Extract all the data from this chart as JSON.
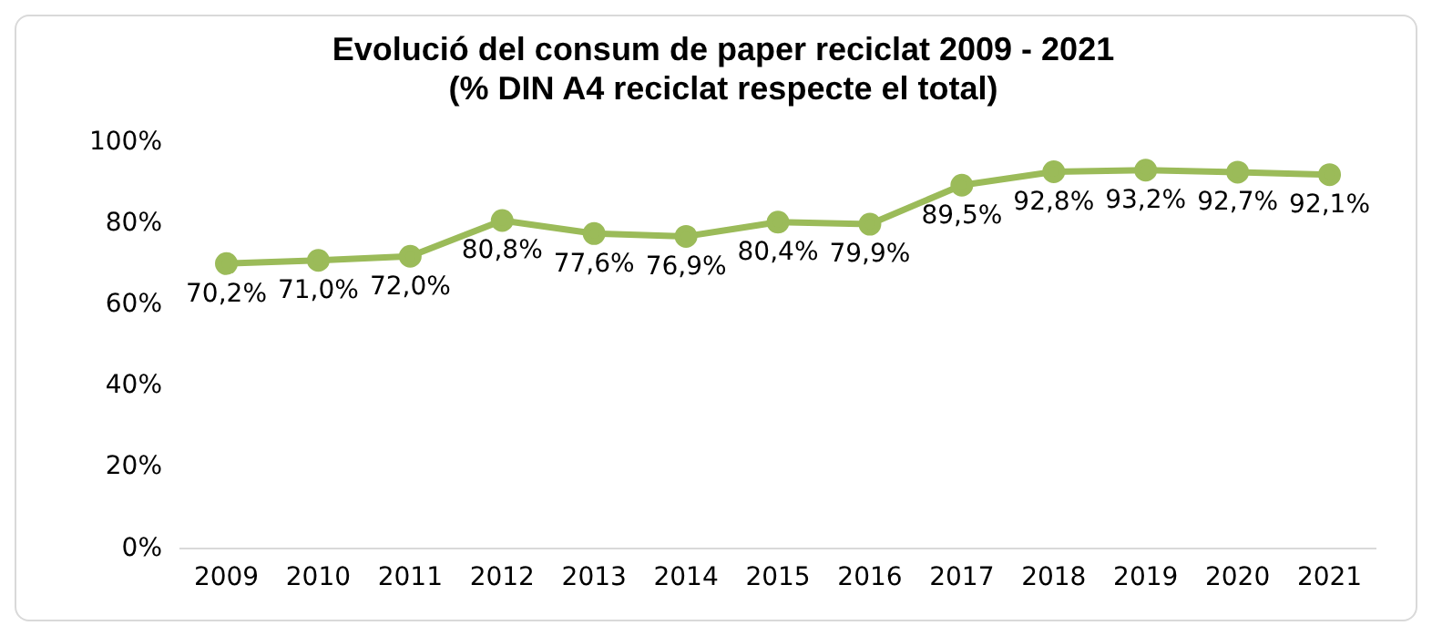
{
  "chart_data": {
    "type": "line",
    "title": "Evolució del consum de paper reciclat 2009 - 2021",
    "subtitle": "(% DIN A4 reciclat respecte el total)",
    "categories": [
      "2009",
      "2010",
      "2011",
      "2012",
      "2013",
      "2014",
      "2015",
      "2016",
      "2017",
      "2018",
      "2019",
      "2020",
      "2021"
    ],
    "series": [
      {
        "color": "#9bbb59",
        "values": [
          70.2,
          71.0,
          72.0,
          80.8,
          77.6,
          76.9,
          80.4,
          79.9,
          89.5,
          92.8,
          93.2,
          92.7,
          92.1
        ],
        "value_labels": [
          "70,2%",
          "71,0%",
          "72,0%",
          "80,8%",
          "77,6%",
          "76,9%",
          "80,4%",
          "79,9%",
          "89,5%",
          "92,8%",
          "93,2%",
          "92,7%",
          "92,1%"
        ]
      }
    ],
    "ylim": [
      0,
      100
    ],
    "yticks": [
      {
        "value": 0,
        "label": "0%"
      },
      {
        "value": 20,
        "label": "20%"
      },
      {
        "value": 40,
        "label": "40%"
      },
      {
        "value": 60,
        "label": "60%"
      },
      {
        "value": 80,
        "label": "80%"
      },
      {
        "value": 100,
        "label": "100%"
      }
    ],
    "grid": false,
    "legend": false,
    "marker": "circle",
    "line_style": "solid"
  }
}
